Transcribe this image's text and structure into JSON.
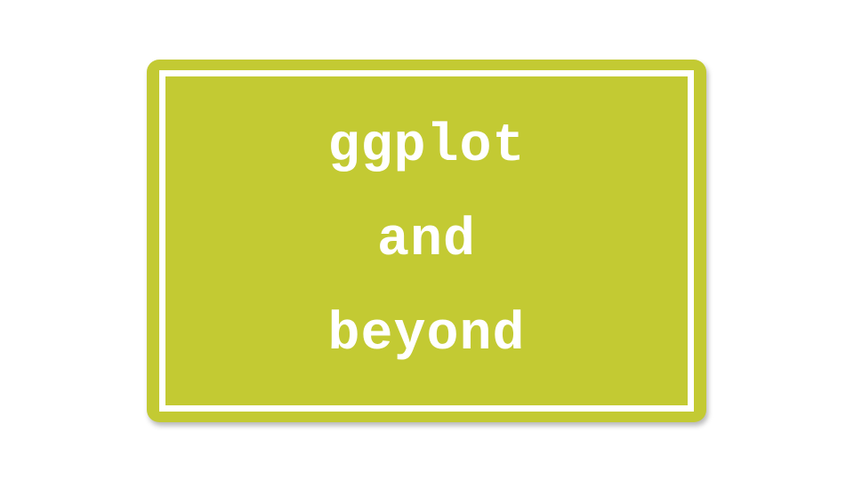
{
  "slide": {
    "title_lines": [
      "ggplot",
      "and",
      "beyond"
    ]
  },
  "colors": {
    "card_fill": "#c3ca33",
    "frame_and_text": "#ffffff",
    "background": "#ffffff"
  }
}
